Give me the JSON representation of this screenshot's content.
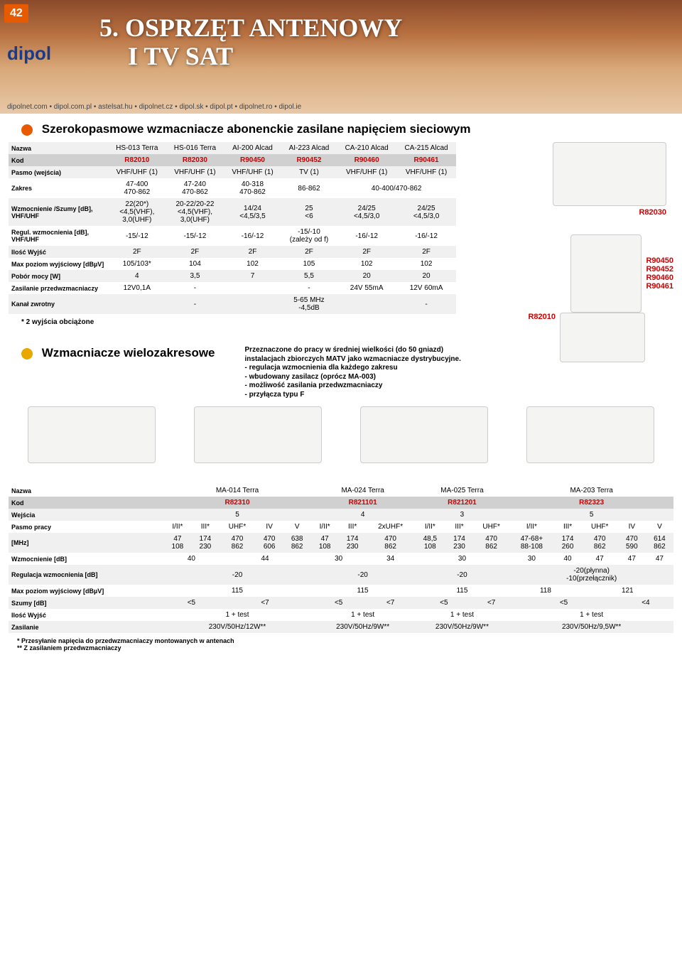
{
  "page_number": "42",
  "logo_text": "dipol",
  "chapter_title_line1": "5. OSPRZĘT ANTENOWY",
  "chapter_title_line2": "I TV SAT",
  "urls": "dipolnet.com • dipol.com.pl • astelsat.hu • dipolnet.cz • dipol.sk • dipol.pt • dipolnet.ro • dipol.ie",
  "colors": {
    "bullet1": "#e85a00",
    "bullet2": "#e8a800",
    "kod_text": "#c00000"
  },
  "section1": {
    "title": "Szerokopasmowe wzmacniacze abonenckie zasilane napięciem sieciowym",
    "row_labels": [
      "Nazwa",
      "Kod",
      "Pasmo (wejścia)",
      "Zakres",
      "Wzmocnienie /Szumy [dB], VHF/UHF",
      "Regul. wzmocnienia [dB], VHF/UHF",
      "Ilość Wyjść",
      "Max poziom wyjściowy [dBµV]",
      "Pobór mocy [W]",
      "Zasilanie przedwzmacniaczy",
      "Kanał zwrotny"
    ],
    "columns": [
      {
        "name": "HS-013 Terra",
        "kod": "R82010",
        "pasmo": "VHF/UHF (1)",
        "zakres": "47-400\n470-862",
        "wz": "22(20*)\n<4,5(VHF),\n3,0(UHF)",
        "reg": "-15/-12",
        "iw": "2F",
        "max": "105/103*",
        "pw": "4",
        "zp": "12V0,1A",
        "kz": ""
      },
      {
        "name": "HS-016 Terra",
        "kod": "R82030",
        "pasmo": "VHF/UHF (1)",
        "zakres": "47-240\n470-862",
        "wz": "20-22/20-22\n<4,5(VHF),\n3,0(UHF)",
        "reg": "-15/-12",
        "iw": "2F",
        "max": "104",
        "pw": "3,5",
        "zp": "-",
        "kz": "-"
      },
      {
        "name": "AI-200 Alcad",
        "kod": "R90450",
        "pasmo": "VHF/UHF (1)",
        "zakres": "40-318\n470-862",
        "wz": "14/24\n<4,5/3,5",
        "reg": "-16/-12",
        "iw": "2F",
        "max": "102",
        "pw": "7",
        "zp": "",
        "kz": ""
      },
      {
        "name": "AI-223 Alcad",
        "kod": "R90452",
        "pasmo": "TV (1)",
        "zakres": "86-862",
        "wz": "25\n<6",
        "reg": "-15/-10\n(zależy od f)",
        "iw": "2F",
        "max": "105",
        "pw": "5,5",
        "zp": "-",
        "kz": "5-65 MHz\n-4,5dB"
      },
      {
        "name": "CA-210 Alcad",
        "kod": "R90460",
        "pasmo": "VHF/UHF (1)",
        "zakres": "40-400/470-862",
        "wz": "24/25\n<4,5/3,0",
        "reg": "-16/-12",
        "iw": "2F",
        "max": "102",
        "pw": "20",
        "zp": "24V 55mA",
        "kz": ""
      },
      {
        "name": "CA-215 Alcad",
        "kod": "R90461",
        "pasmo": "VHF/UHF (1)",
        "zakres": "",
        "wz": "24/25\n<4,5/3,0",
        "reg": "-16/-12",
        "iw": "2F",
        "max": "102",
        "pw": "20",
        "zp": "12V 60mA",
        "kz": "-"
      }
    ],
    "footnote": "* 2 wyjścia obciążone",
    "img_labels": {
      "a": "R82030",
      "b": "R90450\nR90452\nR90460\nR90461",
      "c": "R82010"
    }
  },
  "section2": {
    "title": "Wzmacniacze wielozakresowe",
    "desc": "Przeznaczone do pracy w średniej wielkości (do 50 gniazd)\ninstalacjach zbiorczych MATV jako wzmacniacze dystrybucyjne.\n- regulacja wzmocnienia dla każdego zakresu\n- wbudowany zasilacz (oprócz MA-003)\n- możliwość zasilania przedwzmacniaczy\n- przyłącza typu F",
    "row_labels": [
      "Nazwa",
      "Kod",
      "Wejścia",
      "Pasmo pracy",
      "[MHz]",
      "Wzmocnienie [dB]",
      "Regulacja wzmocnienia [dB]",
      "Max poziom wyjściowy [dBµV]",
      "Szumy [dB]",
      "Ilość Wyjść",
      "Zasilanie"
    ],
    "products": [
      {
        "nazwa": "MA-014 Terra",
        "kod": "R82310",
        "wejscia": "5",
        "pasmo": [
          "I/II*",
          "III*",
          "UHF*",
          "IV",
          "V"
        ],
        "mhz": [
          "47\n108",
          "174\n230",
          "470\n862",
          "470\n606",
          "638\n862"
        ],
        "wz": [
          "40",
          "",
          "44",
          "",
          ""
        ],
        "reg": "-20",
        "max": "115",
        "szumy": [
          "<5",
          "",
          "<7",
          "",
          ""
        ],
        "iw": "1 + test",
        "zas": "230V/50Hz/12W**"
      },
      {
        "nazwa": "MA-024 Terra",
        "kod": "R821101",
        "wejscia": "4",
        "pasmo": [
          "I/II*",
          "III*",
          "2xUHF*"
        ],
        "mhz": [
          "47\n108",
          "174\n230",
          "470\n862"
        ],
        "wz": [
          "30",
          "",
          "34"
        ],
        "reg": "-20",
        "max": "115",
        "szumy": [
          "<5",
          "",
          "<7"
        ],
        "iw": "1 + test",
        "zas": "230V/50Hz/9W**"
      },
      {
        "nazwa": "MA-025 Terra",
        "kod": "R821201",
        "wejscia": "3",
        "pasmo": [
          "I/II*",
          "III*",
          "UHF*"
        ],
        "mhz": [
          "48,5\n108",
          "174\n230",
          "470\n862"
        ],
        "wz": [
          "30",
          "",
          ""
        ],
        "reg": "-20",
        "max": "115",
        "szumy": [
          "<5",
          "",
          "<7"
        ],
        "iw": "1 + test",
        "zas": "230V/50Hz/9W**"
      },
      {
        "nazwa": "MA-203 Terra",
        "kod": "R82323",
        "wejscia": "5",
        "pasmo": [
          "I/II*",
          "III*",
          "UHF*",
          "IV",
          "V"
        ],
        "mhz": [
          "47-68+\n88-108",
          "174\n260",
          "470\n862",
          "470\n590",
          "614\n862"
        ],
        "wz": [
          "30",
          "40",
          "47",
          "47",
          "47"
        ],
        "reg": "-20(płynna)\n-10(przełącznik)",
        "max_a": "118",
        "max_b": "121",
        "szumy": [
          "<5",
          "",
          "",
          "<4",
          ""
        ],
        "iw": "1 + test",
        "zas": "230V/50Hz/9,5W**"
      }
    ],
    "notes": "* Przesyłanie napięcia do przedwzmacniaczy montowanych w antenach\n** Z zasilaniem przedwzmacniaczy"
  }
}
